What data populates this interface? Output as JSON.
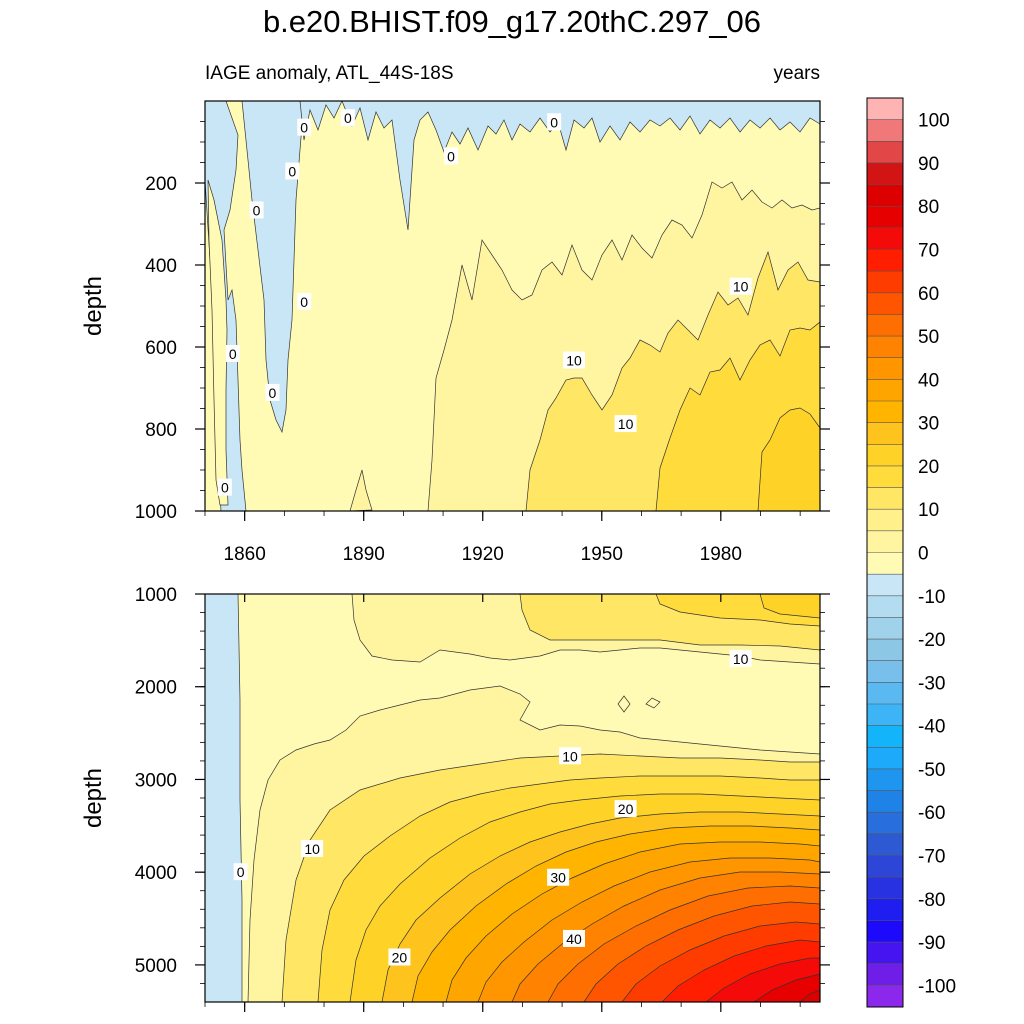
{
  "chart_data": {
    "type": "heatmap",
    "title": "b.e20.BHIST.f09_g17.20thC.297_06",
    "subtitle_left": "IAGE anomaly, ATL_44S-18S",
    "subtitle_right": "years",
    "x_range": [
      1850,
      2005
    ],
    "x_ticks": [
      1860,
      1890,
      1920,
      1950,
      1980
    ],
    "upper_panel": {
      "ylabel": "depth",
      "y_range": [
        0,
        1000
      ],
      "y_ticks": [
        200,
        400,
        600,
        800,
        1000
      ],
      "contour_labels": [
        {
          "text": "0",
          "x": 1875,
          "y": 65
        },
        {
          "text": "0",
          "x": 1886,
          "y": 42
        },
        {
          "text": "0",
          "x": 1938,
          "y": 52
        },
        {
          "text": "0",
          "x": 1872,
          "y": 172
        },
        {
          "text": "0",
          "x": 1912,
          "y": 135
        },
        {
          "text": "0",
          "x": 1863,
          "y": 267
        },
        {
          "text": "0",
          "x": 1875,
          "y": 490
        },
        {
          "text": "0",
          "x": 1857,
          "y": 617
        },
        {
          "text": "0",
          "x": 1867,
          "y": 712
        },
        {
          "text": "0",
          "x": 1855,
          "y": 943
        },
        {
          "text": "10",
          "x": 1943,
          "y": 633
        },
        {
          "text": "10",
          "x": 1956,
          "y": 788
        },
        {
          "text": "10",
          "x": 1985,
          "y": 453
        }
      ]
    },
    "lower_panel": {
      "ylabel": "depth",
      "y_range": [
        1000,
        5400
      ],
      "y_ticks": [
        1000,
        2000,
        3000,
        4000,
        5000
      ],
      "contour_labels": [
        {
          "text": "0",
          "x": 1859,
          "y": 4000
        },
        {
          "text": "10",
          "x": 1985,
          "y": 1700
        },
        {
          "text": "10",
          "x": 1942,
          "y": 2750
        },
        {
          "text": "10",
          "x": 1877,
          "y": 3750
        },
        {
          "text": "20",
          "x": 1956,
          "y": 3320
        },
        {
          "text": "20",
          "x": 1899,
          "y": 4920
        },
        {
          "text": "30",
          "x": 1939,
          "y": 4060
        },
        {
          "text": "40",
          "x": 1943,
          "y": 4720
        }
      ]
    },
    "colorbar": {
      "labels": [
        "100",
        "90",
        "80",
        "70",
        "60",
        "50",
        "40",
        "30",
        "20",
        "10",
        "0",
        "-10",
        "-20",
        "-30",
        "-40",
        "-50",
        "-60",
        "-70",
        "-80",
        "-90",
        "-100"
      ],
      "colors_top_to_bottom": [
        "#ffb4b4",
        "#f07878",
        "#e24646",
        "#d21414",
        "#dc0000",
        "#e60000",
        "#f50a0a",
        "#ff1e00",
        "#ff3c00",
        "#ff5500",
        "#ff6e00",
        "#ff8200",
        "#ff9600",
        "#ffa500",
        "#ffb400",
        "#ffc31e",
        "#ffd228",
        "#ffdc3c",
        "#ffe664",
        "#fff08c",
        "#fff5a0",
        "#fffab4",
        "#c8e6f5",
        "#b4dcf0",
        "#a0d2eb",
        "#8cc8e6",
        "#78c0eb",
        "#5ab9f0",
        "#3cb4f5",
        "#14b4fa",
        "#1eaafa",
        "#1e96f0",
        "#1e82e6",
        "#286edc",
        "#2d5ad2",
        "#2d46d7",
        "#2832e1",
        "#1e1ef0",
        "#1e0afa",
        "#4614f0",
        "#6e1ee6",
        "#8c28eb"
      ]
    }
  }
}
